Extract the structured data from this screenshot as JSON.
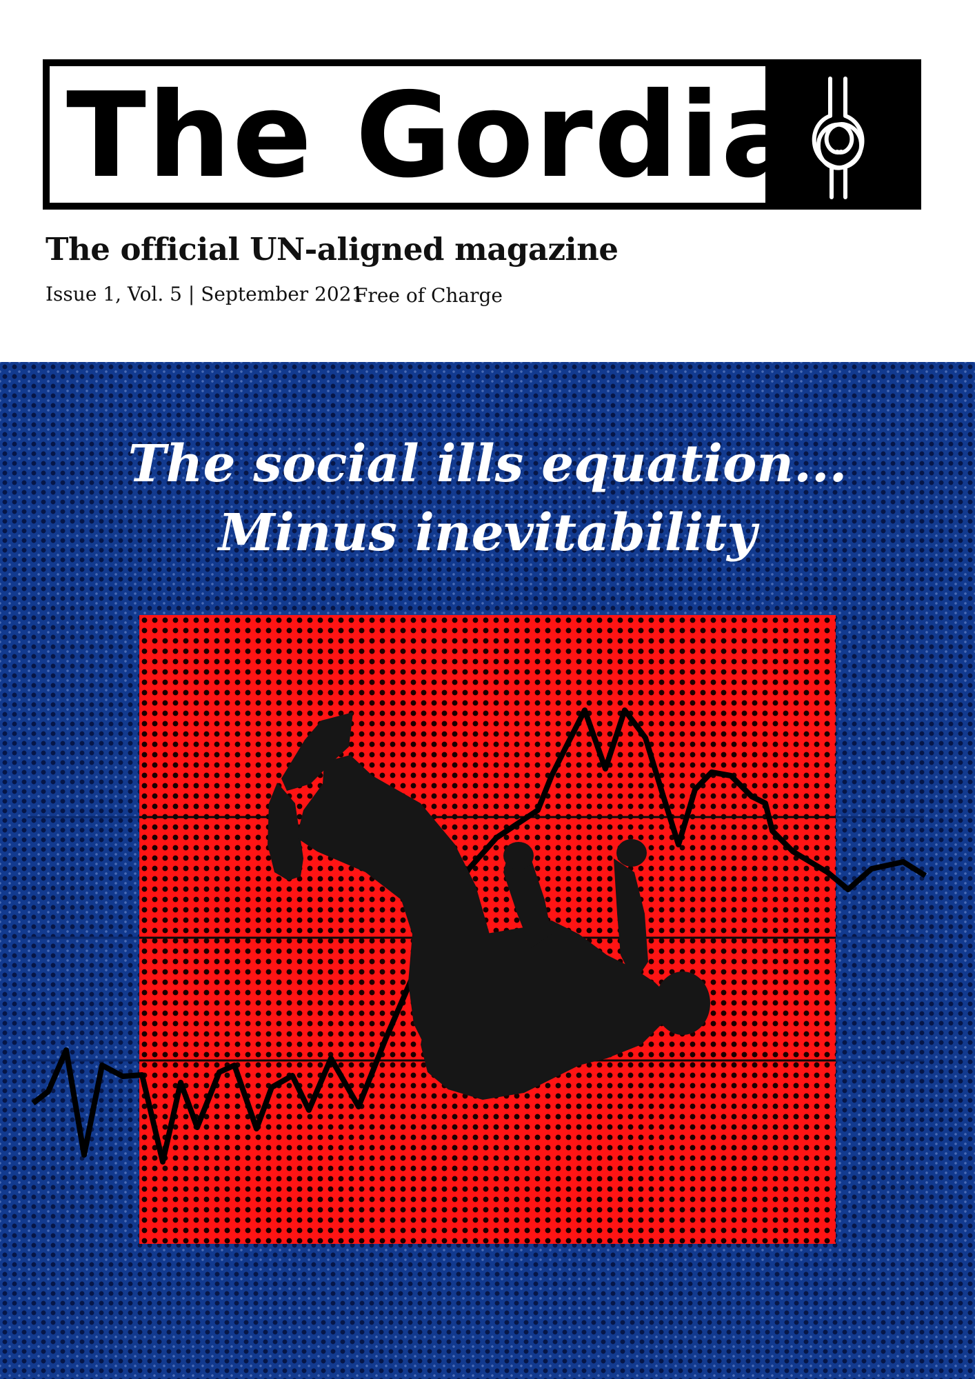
{
  "masthead": {
    "title": "The Gordian",
    "logo_icon": "knot-icon"
  },
  "subtitle": "The official UN-aligned magazine",
  "issue": {
    "info": "Issue 1, Vol. 5 | September 2021",
    "price": "Free of Charge"
  },
  "cover": {
    "headline_line1": "The social ills equation...",
    "headline_line2": "Minus inevitability",
    "colors": {
      "background_blue": "#123a8f",
      "panel_red": "#ff1414",
      "headline": "#ffffff"
    }
  }
}
